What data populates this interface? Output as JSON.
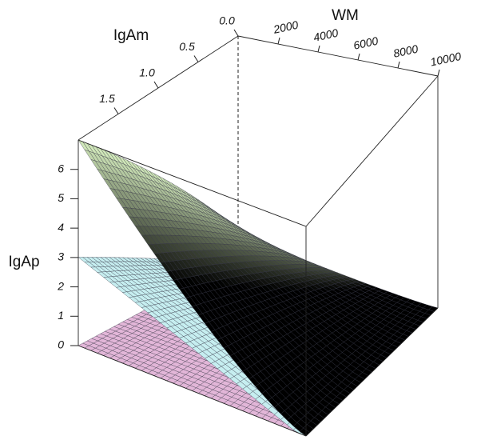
{
  "chart_data": {
    "type": "surface3d",
    "x_label": "WM",
    "y_label": "IgAm",
    "z_label": "IgAp",
    "xlim": [
      0,
      10000
    ],
    "xticks": [
      2000,
      4000,
      6000,
      8000,
      10000
    ],
    "ylim": [
      0,
      2
    ],
    "yticks": [
      {
        "value": 0,
        "label": "0.0"
      },
      {
        "value": 0.5,
        "label": "0.5"
      },
      {
        "value": 1,
        "label": "1.0"
      },
      {
        "value": 1.5,
        "label": "1.5"
      }
    ],
    "zlim": [
      0,
      7
    ],
    "zticks": [
      0,
      1,
      2,
      3,
      4,
      5,
      6
    ]
  }
}
